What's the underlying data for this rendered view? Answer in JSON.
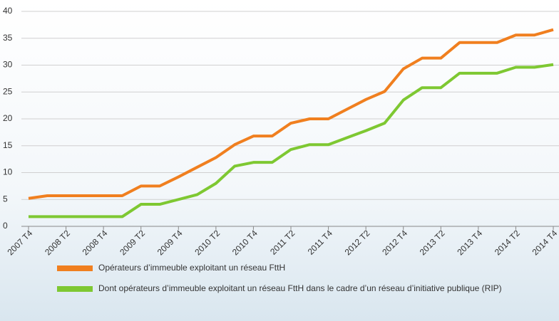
{
  "chart_data": {
    "type": "line",
    "categories": [
      "2007 T4",
      null,
      "2008 T2",
      null,
      "2008 T4",
      null,
      "2009 T2",
      null,
      "2009 T4",
      null,
      "2010 T2",
      null,
      "2010 T4",
      null,
      "2011 T2",
      null,
      "2011 T4",
      null,
      "2012 T2",
      null,
      "2012 T4",
      null,
      "2013 T2",
      null,
      "2013 T4",
      null,
      "2014 T2",
      null,
      "2014 T4"
    ],
    "series": [
      {
        "name": "Opérateurs d’immeuble exploitant un réseau FttH",
        "color": "#f07f1f",
        "values": [
          5.2,
          5.7,
          5.7,
          5.7,
          5.7,
          5.7,
          7.5,
          7.5,
          9.2,
          11,
          12.8,
          15.2,
          16.8,
          16.8,
          19.2,
          20,
          20,
          21.8,
          23.6,
          25.1,
          29.3,
          31.3,
          31.3,
          34.2,
          34.2,
          34.2,
          35.6,
          35.6,
          36.6
        ]
      },
      {
        "name": "Dont opérateurs d’immeuble exploitant un réseau FttH dans le cadre d’un réseau d’initiative publique (RIP)",
        "color": "#7ec832",
        "values": [
          1.8,
          1.8,
          1.8,
          1.8,
          1.8,
          1.8,
          4.1,
          4.1,
          5,
          5.9,
          8,
          11.2,
          11.9,
          11.9,
          14.3,
          15.2,
          15.2,
          16.5,
          17.8,
          19.2,
          23.5,
          25.8,
          25.8,
          28.5,
          28.5,
          28.5,
          29.6,
          29.6,
          30.1
        ]
      }
    ],
    "ylim": [
      0,
      40
    ],
    "yticks": [
      0,
      5,
      10,
      15,
      20,
      25,
      30,
      35,
      40
    ],
    "grid": true
  }
}
